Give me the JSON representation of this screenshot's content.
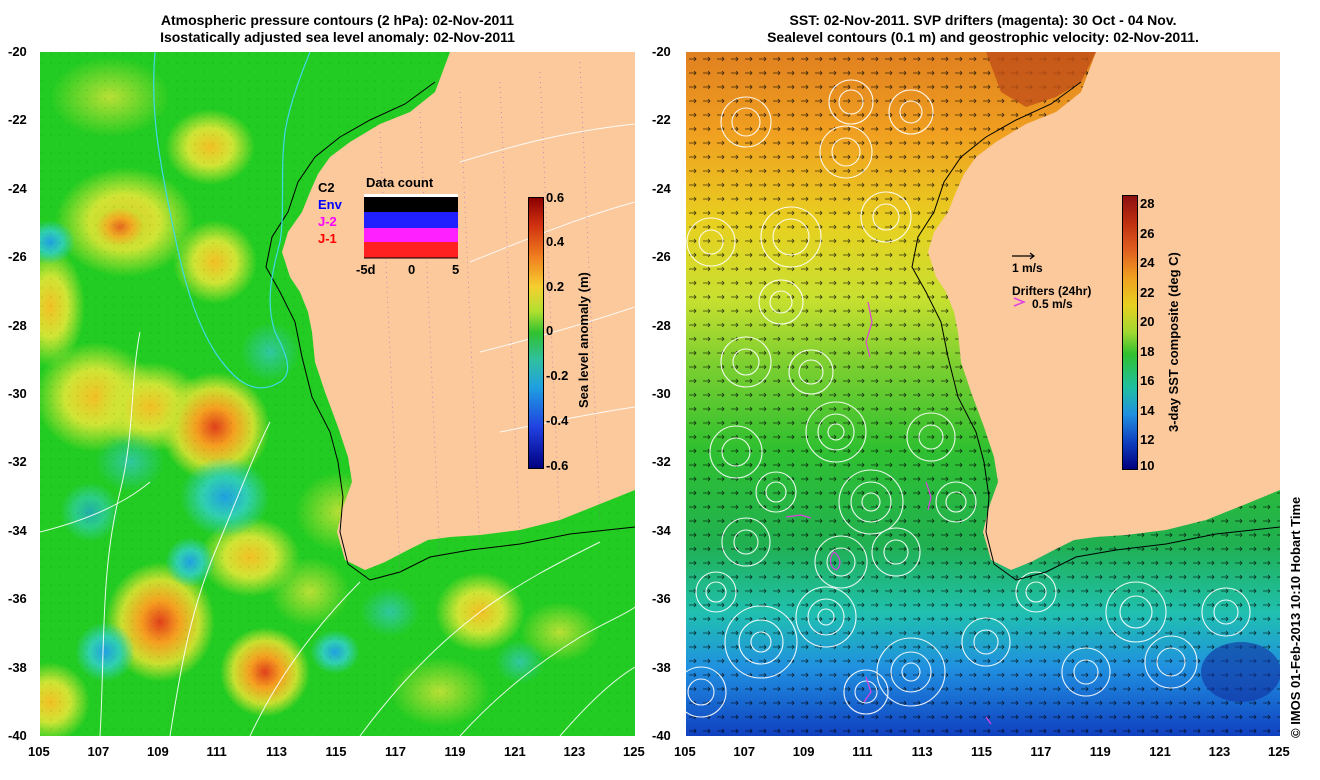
{
  "left_panel": {
    "title_line1": "Atmospheric pressure contours (2 hPa): 02-Nov-2011",
    "title_line2": "Isostatically adjusted sea level anomaly: 02-Nov-2011",
    "colorbar": {
      "label": "Sea level anomaly (m)",
      "ticks": [
        "0.6",
        "0.4",
        "0.2",
        "0",
        "-0.2",
        "-0.4",
        "-0.6"
      ],
      "min": -0.6,
      "max": 0.6
    },
    "inset": {
      "title": "Data count",
      "legend": [
        {
          "label": "C2",
          "color": "#000000"
        },
        {
          "label": "Env",
          "color": "#0000ff"
        },
        {
          "label": "J-2",
          "color": "#ff00ff"
        },
        {
          "label": "J-1",
          "color": "#ff0000"
        }
      ],
      "x_ticks": [
        "-5d",
        "0",
        "5"
      ]
    }
  },
  "right_panel": {
    "title_line1": "SST: 02-Nov-2011. SVP drifters (magenta): 30 Oct - 04 Nov.",
    "title_line2": "Sealevel contours (0.1 m) and geostrophic velocity: 02-Nov-2011.",
    "colorbar": {
      "label": "3-day SST composite (deg C)",
      "ticks": [
        "28",
        "26",
        "24",
        "22",
        "20",
        "18",
        "16",
        "14",
        "12",
        "10"
      ],
      "min": 10,
      "max": 28.5
    },
    "velocity_legend": "1 m/s",
    "drifters_title": "Drifters (24hr)",
    "drifters_speed": "0.5 m/s"
  },
  "axes": {
    "lat_ticks": [
      "-20",
      "-22",
      "-24",
      "-26",
      "-28",
      "-30",
      "-32",
      "-34",
      "-36",
      "-38",
      "-40"
    ],
    "lon_ticks": [
      "105",
      "107",
      "109",
      "111",
      "113",
      "115",
      "117",
      "119",
      "121",
      "123",
      "125"
    ]
  },
  "credit": "© IMOS 01-Feb-2013 10:10 Hobart Time",
  "colors": {
    "land": "#fbc99c",
    "sla_mid": "#22cc22",
    "sst_warm": "#ee9922",
    "sst_cool": "#2255dd"
  }
}
